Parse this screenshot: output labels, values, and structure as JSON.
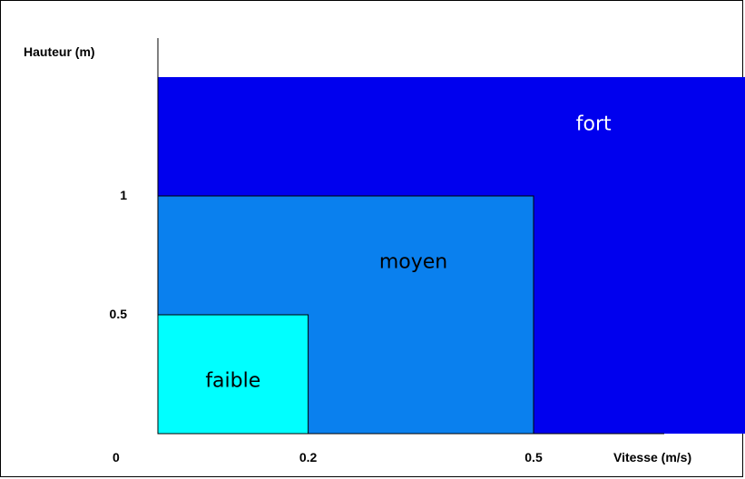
{
  "chart_data": {
    "type": "area",
    "xlabel": "Vitesse (m/s)",
    "ylabel": "Hauteur (m)",
    "origin_label": "0",
    "xticks": [
      {
        "value": 0.2,
        "label": "0.2"
      },
      {
        "value": 0.5,
        "label": "0.5"
      }
    ],
    "yticks": [
      {
        "value": 0.5,
        "label": "0.5"
      },
      {
        "value": 1,
        "label": "1"
      }
    ],
    "xlim": [
      0,
      1.0
    ],
    "ylim": [
      0,
      1.6
    ],
    "zones": [
      {
        "label": "fort",
        "x_max": 0.8,
        "y_max": 1.5,
        "color": "#0000ee",
        "text_color": "#ffffff"
      },
      {
        "label": "moyen",
        "x_max": 0.5,
        "y_max": 1,
        "color": "#0a80ee",
        "text_color": "#000000"
      },
      {
        "label": "faible",
        "x_max": 0.2,
        "y_max": 0.5,
        "color": "#00ffff",
        "text_color": "#000000"
      }
    ],
    "grid": false,
    "legend": "none"
  }
}
